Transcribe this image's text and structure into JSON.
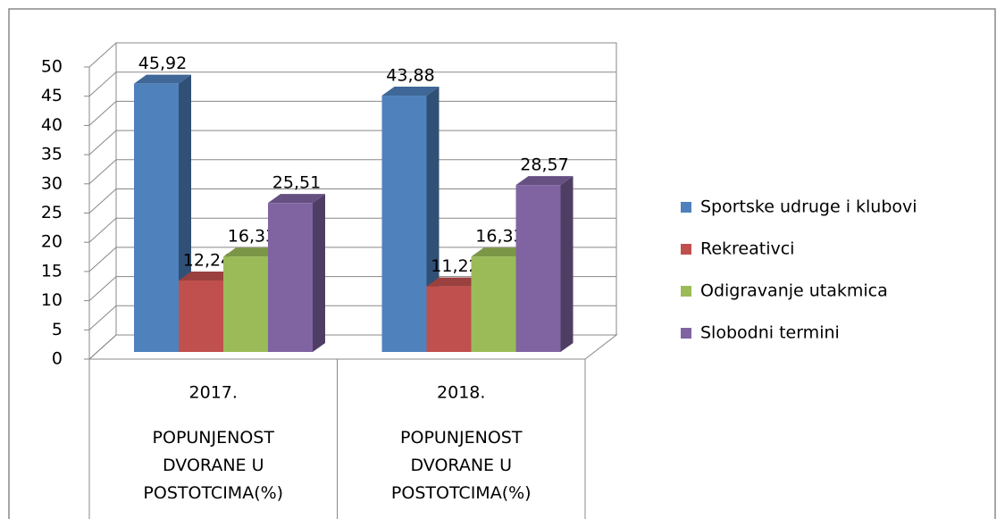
{
  "chart_data": {
    "type": "bar3d",
    "categories": [
      "2017.",
      "2018."
    ],
    "category_groups": [
      "POPUNJENOST DVORANE U POSTOTCIMA(%)",
      "POPUNJENOST DVORANE U POSTOTCIMA(%)"
    ],
    "series": [
      {
        "name": "Sportske udruge i klubovi",
        "color": "#4f81bd",
        "values": [
          45.92,
          43.88
        ],
        "value_labels": [
          "45,92",
          "43,88"
        ]
      },
      {
        "name": "Rekreativci",
        "color": "#c0504d",
        "values": [
          12.24,
          11.22
        ],
        "value_labels": [
          "12,24",
          "11,22"
        ]
      },
      {
        "name": "Odigravanje utakmica",
        "color": "#9bbb59",
        "values": [
          16.33,
          16.33
        ],
        "value_labels": [
          "16,33",
          "16,33"
        ]
      },
      {
        "name": "Slobodni termini",
        "color": "#8064a2",
        "values": [
          25.51,
          28.57
        ],
        "value_labels": [
          "25,51",
          "28,57"
        ]
      }
    ],
    "ylim": [
      0,
      50
    ],
    "yticks": [
      0,
      5,
      10,
      15,
      20,
      25,
      30,
      35,
      40,
      45,
      50
    ],
    "grid": true,
    "legend": "right"
  }
}
